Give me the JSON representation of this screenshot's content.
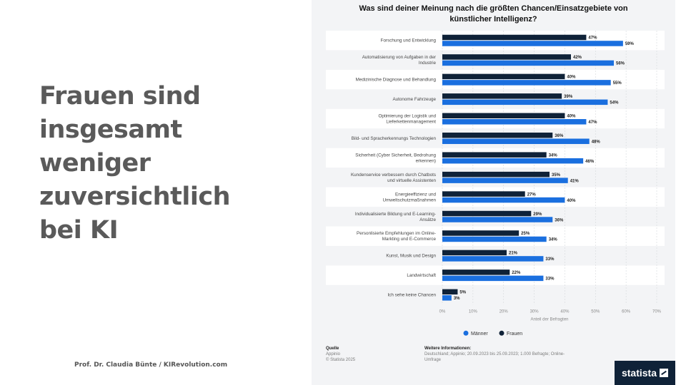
{
  "slide": {
    "headline_lines": [
      "Frauen sind",
      "insgesamt",
      "weniger",
      "zuversichtlich",
      "bei KI"
    ],
    "credit": "Prof. Dr. Claudia Bünte / KIRevolution.com"
  },
  "chart_data": {
    "type": "bar",
    "orientation": "horizontal",
    "title_lines": [
      "Was sind deiner Meinung nach die größten Chancen/Einsatzgebiete von",
      "künstlicher Intelligenz?"
    ],
    "xlabel": "Anteil der Befragten",
    "xlim": [
      0,
      70
    ],
    "xticks": [
      "0%",
      "10%",
      "20%",
      "30%",
      "40%",
      "50%",
      "60%",
      "70%"
    ],
    "legend_position": "bottom",
    "categories": [
      [
        "Forschung und Entwicklung"
      ],
      [
        "Automatisierung von Aufgaben in der",
        "Industrie"
      ],
      [
        "Medizinische Diagnose und Behandlung"
      ],
      [
        "Autonome Fahrzeuge"
      ],
      [
        "Optimierung der Logistik und",
        "Lieferkettenmanagement"
      ],
      [
        "Bild- und Spracherkennungs Technologien"
      ],
      [
        "Sicherheit (Cyber Sicherheit, Bedrohung",
        "erkennen)"
      ],
      [
        "Kundenservice verbessern durch Chatbots",
        "und virtuelle Assistenten"
      ],
      [
        "Energieeffizienz und",
        "Umweltschutzmaßnahmen"
      ],
      [
        "Individualisierte Bildung und E-Learning-",
        "Ansätze"
      ],
      [
        "Personlisierte Empfehlungen im Online-",
        "Markting und E-Commerce"
      ],
      [
        "Kunst, Musik und Design"
      ],
      [
        "Landwirtschaft"
      ],
      [
        "Ich sehe keine Chancen"
      ]
    ],
    "series": [
      {
        "name": "Frauen",
        "color": "#0f2238",
        "values": [
          47,
          42,
          40,
          39,
          40,
          36,
          34,
          35,
          27,
          29,
          25,
          21,
          22,
          5
        ]
      },
      {
        "name": "Männer",
        "color": "#1a6fdf",
        "values": [
          59,
          56,
          55,
          54,
          47,
          48,
          46,
          41,
          40,
          36,
          34,
          33,
          33,
          3
        ]
      }
    ],
    "legend": [
      "Männer",
      "Frauen"
    ]
  },
  "source": {
    "left_header": "Quelle",
    "left_lines": [
      "Appinio",
      "© Statista 2025"
    ],
    "right_header": "Weitere Informationen:",
    "right_lines": [
      "Deutschland; Appinio; 20.09.2023 bis 25.09.2023; 1.000 Befragte; Online-",
      "Umfrage"
    ]
  },
  "logo": {
    "text": "statista",
    "icon": "statista-logo-icon"
  }
}
